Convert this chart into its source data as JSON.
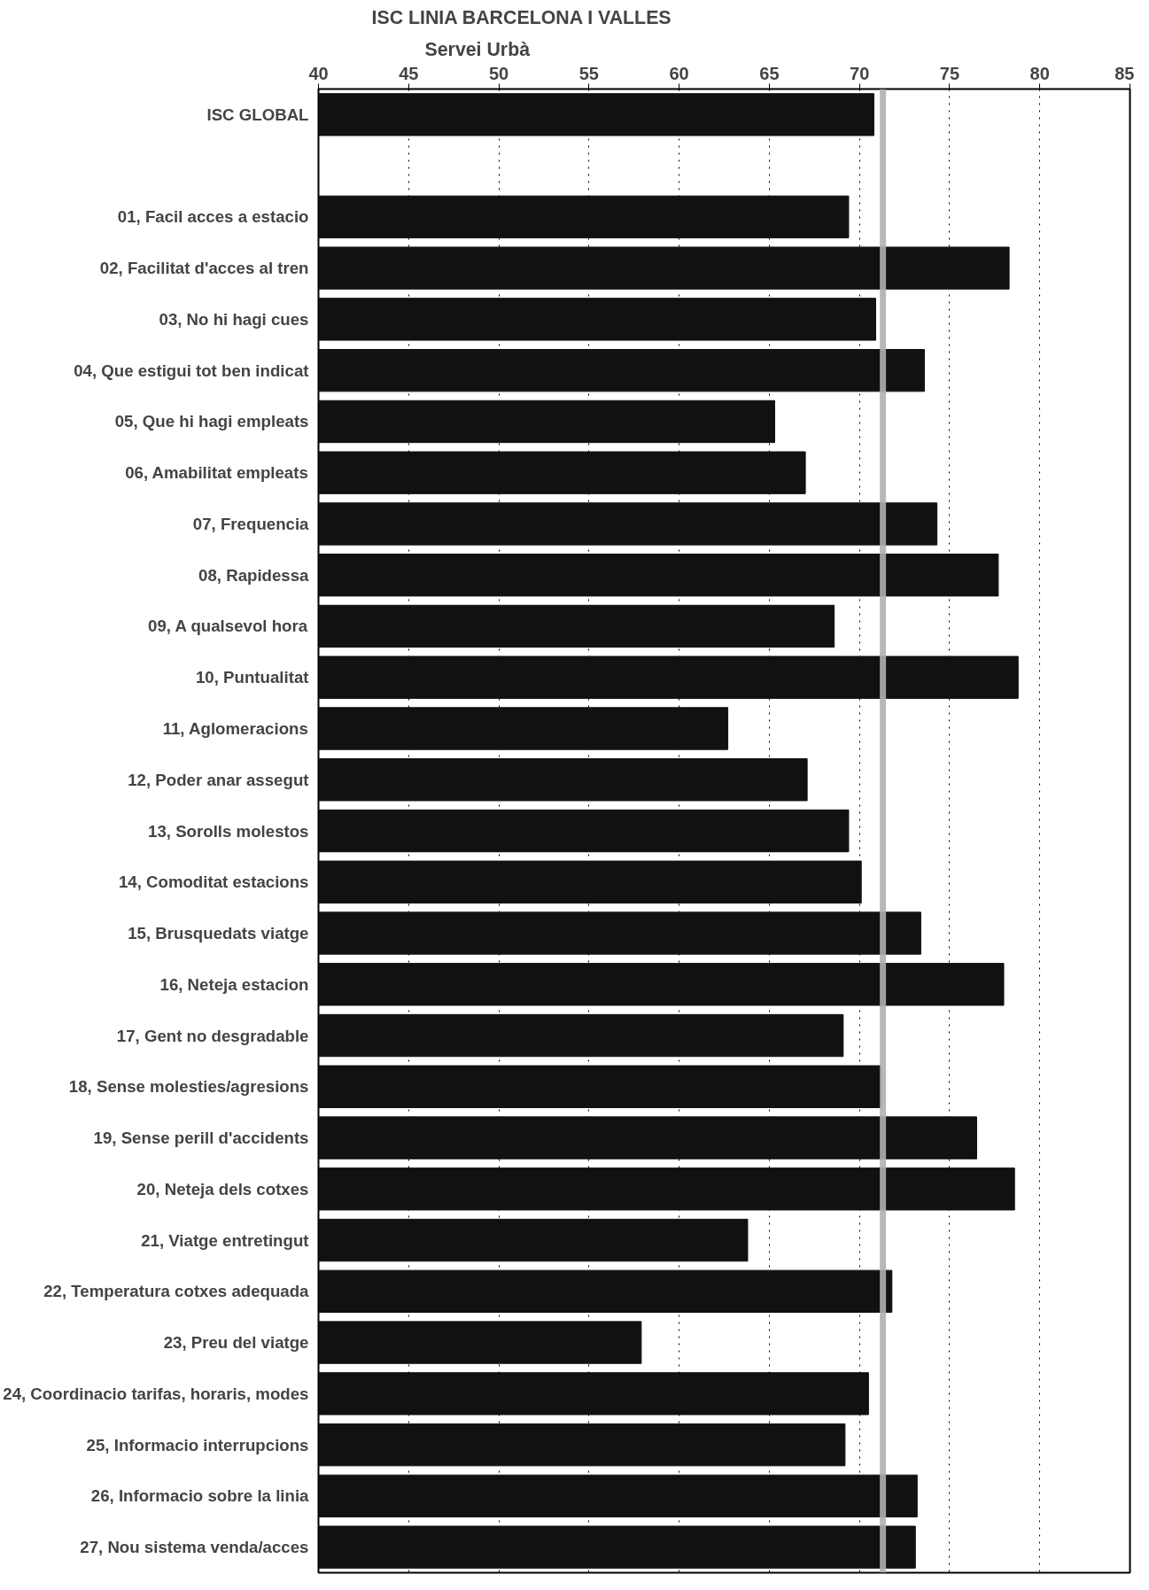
{
  "chart_data": {
    "type": "bar",
    "orientation": "horizontal",
    "title": "ISC LINIA BARCELONA I VALLES",
    "subtitle": "Servei Urbà",
    "categories": [
      "ISC GLOBAL",
      null,
      "01, Facil acces a estacio",
      "02, Facilitat d'acces al tren",
      "03, No hi hagi cues",
      "04, Que estigui tot ben indicat",
      "05, Que hi hagi empleats",
      "06, Amabilitat empleats",
      "07, Frequencia",
      "08, Rapidessa",
      "09, A qualsevol hora",
      "10, Puntualitat",
      "11, Aglomeracions",
      "12, Poder anar assegut",
      "13, Sorolls molestos",
      "14, Comoditat estacions",
      "15, Brusquedats viatge",
      "16, Neteja estacion",
      "17, Gent no desgradable",
      "18, Sense molesties/agresions",
      "19, Sense perill d'accidents",
      "20, Neteja dels cotxes",
      "21, Viatge entretingut",
      "22, Temperatura cotxes adequada",
      "23, Preu del viatge",
      "24, Coordinacio tarifas, horaris, modes",
      "25, Informacio interrupcions",
      "26, Informacio sobre la linia",
      "27, Nou sistema venda/acces"
    ],
    "values": [
      70.8,
      null,
      69.4,
      78.3,
      70.9,
      73.6,
      65.3,
      67.0,
      74.3,
      77.7,
      68.6,
      78.8,
      62.7,
      67.1,
      69.4,
      70.1,
      73.4,
      78.0,
      69.1,
      71.2,
      76.5,
      78.6,
      63.8,
      71.8,
      57.9,
      70.5,
      69.2,
      73.2,
      73.1
    ],
    "color": "#111111",
    "xlim": [
      40,
      85
    ],
    "xticks": [
      40,
      45,
      50,
      55,
      60,
      65,
      70,
      75,
      80,
      85
    ],
    "grid": "x",
    "ref_lines": [
      {
        "axis": "x",
        "value": 71.3,
        "color": "#b0b0b0"
      }
    ]
  }
}
